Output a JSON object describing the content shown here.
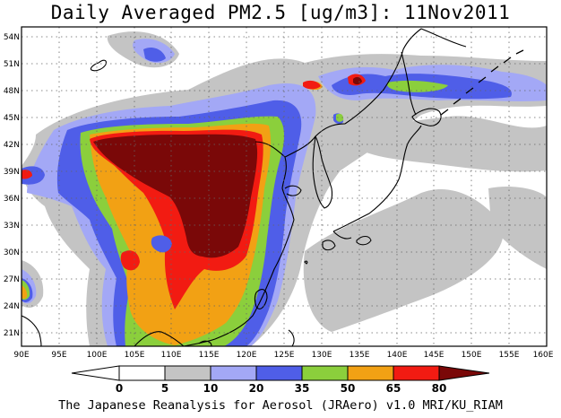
{
  "title": "Daily Averaged PM2.5 [ug/m3]: 11Nov2011",
  "footer": "The Japanese Reanalysis for Aerosol (JRAero) v1.0 MRI/KU_RIAM",
  "map": {
    "lat_labels": [
      "54N",
      "51N",
      "48N",
      "45N",
      "42N",
      "39N",
      "36N",
      "33N",
      "30N",
      "27N",
      "24N",
      "21N"
    ],
    "lon_labels": [
      "90E",
      "95E",
      "100E",
      "105E",
      "110E",
      "115E",
      "120E",
      "125E",
      "130E",
      "135E",
      "140E",
      "145E",
      "150E",
      "155E",
      "160E"
    ],
    "lon_range": [
      90,
      160
    ],
    "lat_range": [
      20,
      55.5
    ],
    "grid": "dotted"
  },
  "colorbar": {
    "labels": [
      "0",
      "5",
      "10",
      "20",
      "35",
      "50",
      "65",
      "80"
    ],
    "colors": [
      "#ffffff",
      "#c4c4c4",
      "#a3a8f6",
      "#4f5ee8",
      "#8bcf3c",
      "#f2a114",
      "#f21b12",
      "#7a0808"
    ]
  }
}
